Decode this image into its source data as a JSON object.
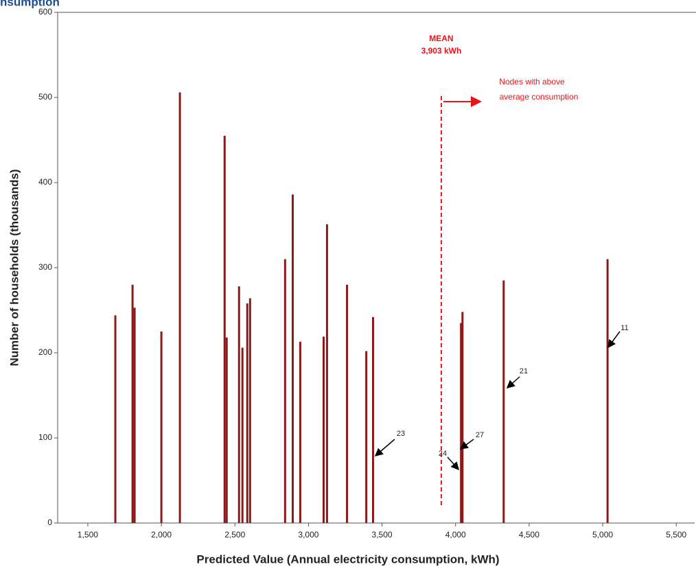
{
  "chart_data": {
    "type": "spike",
    "title": "nsumption",
    "x_label": "Predicted Value (Annual electricity consumption, kWh)",
    "y_label": "Number of households (thousands)",
    "x": [
      1687,
      1804,
      1818,
      2000,
      2126,
      2430,
      2444,
      2528,
      2551,
      2584,
      2603,
      2841,
      2893,
      2944,
      3103,
      3126,
      3262,
      3393,
      3439,
      4037,
      4047,
      4327,
      5033
    ],
    "values": [
      244,
      280,
      253,
      225,
      506,
      455,
      218,
      278,
      206,
      258,
      264,
      310,
      386,
      213,
      219,
      351,
      280,
      202,
      242,
      235,
      248,
      285,
      310
    ],
    "color": "#8b1a1a",
    "xlim": [
      1295,
      5625
    ],
    "ylim": [
      0,
      600
    ],
    "xticks": [
      {
        "value": 1500,
        "label": "1,500"
      },
      {
        "value": 2000,
        "label": "2,000"
      },
      {
        "value": 2500,
        "label": "2,500"
      },
      {
        "value": 3000,
        "label": "3,000"
      },
      {
        "value": 3500,
        "label": "3,500"
      },
      {
        "value": 4000,
        "label": "4,000"
      },
      {
        "value": 4500,
        "label": "4,500"
      },
      {
        "value": 5000,
        "label": "5,000"
      },
      {
        "value": 5500,
        "label": "5,500"
      }
    ],
    "yticks": [
      0,
      100,
      200,
      300,
      400,
      500,
      600
    ],
    "mean": {
      "label": "MEAN",
      "value": 3903,
      "value_label": "3,903 kWh",
      "color": "#e8141a"
    },
    "note": [
      "Nodes with above",
      "average consumption"
    ],
    "annotations": [
      "23",
      "24",
      "27",
      "21",
      "11"
    ]
  }
}
